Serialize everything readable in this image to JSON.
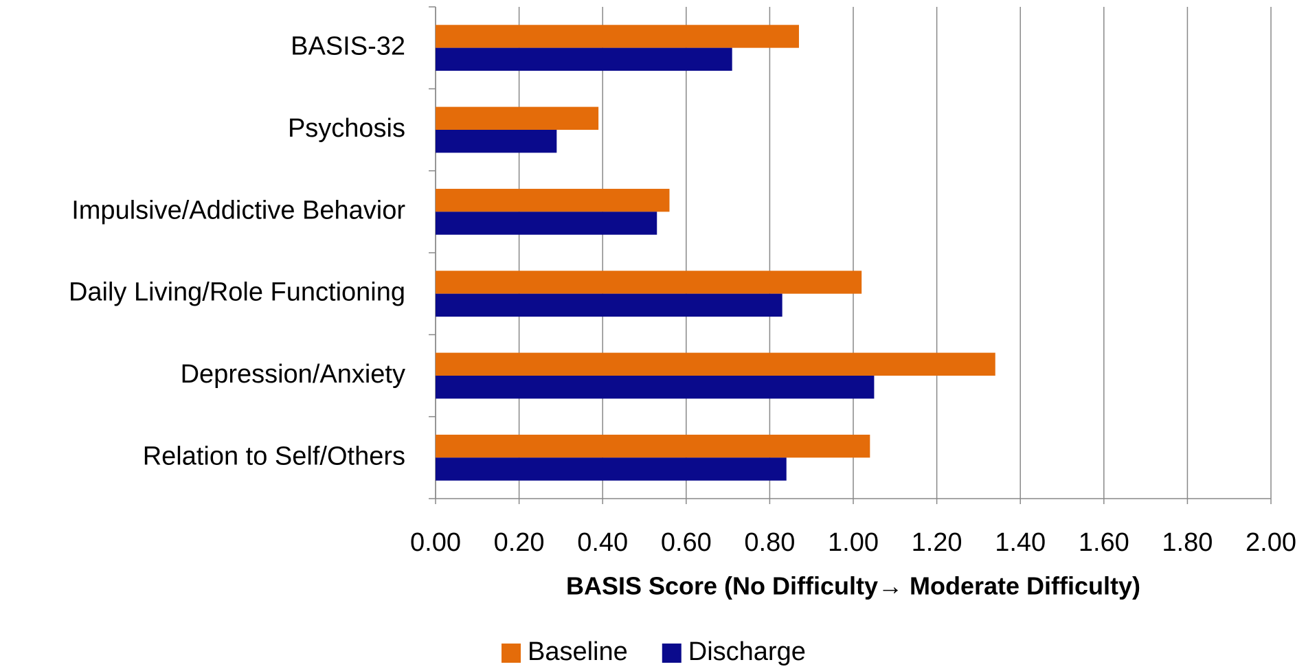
{
  "chart_data": {
    "type": "hbar",
    "x_label": "BASIS Score (No Difficulty→ Moderate Difficulty)",
    "categories": [
      "BASIS-32",
      "Psychosis",
      "Impulsive/Addictive Behavior",
      "Daily Living/Role Functioning",
      "Depression/Anxiety",
      "Relation to Self/Others"
    ],
    "series": [
      {
        "name": "Baseline",
        "color": "#e46c0a",
        "values": [
          0.87,
          0.39,
          0.56,
          1.02,
          1.34,
          1.04
        ]
      },
      {
        "name": "Discharge",
        "color": "#0a0a8c",
        "values": [
          0.71,
          0.29,
          0.53,
          0.83,
          1.05,
          0.84
        ]
      }
    ],
    "xlim": [
      0,
      2
    ],
    "xticks": [
      {
        "value": 0,
        "label": "0.00"
      },
      {
        "value": 0.2,
        "label": "0.20"
      },
      {
        "value": 0.4,
        "label": "0.40"
      },
      {
        "value": 0.6,
        "label": "0.60"
      },
      {
        "value": 0.8,
        "label": "0.80"
      },
      {
        "value": 1,
        "label": "1.00"
      },
      {
        "value": 1.2,
        "label": "1.20"
      },
      {
        "value": 1.4,
        "label": "1.40"
      },
      {
        "value": 1.6,
        "label": "1.60"
      },
      {
        "value": 1.8,
        "label": "1.80"
      },
      {
        "value": 2,
        "label": "2.00"
      }
    ],
    "grid": true,
    "legend": "bottom"
  }
}
